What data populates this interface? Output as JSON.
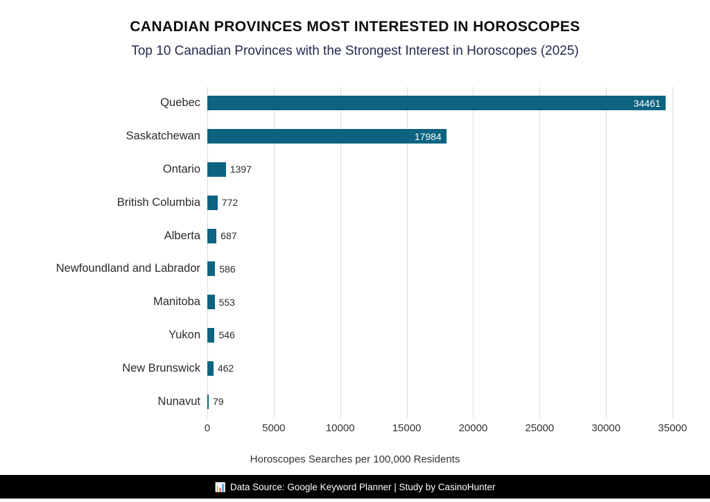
{
  "page": {
    "title": "CANADIAN PROVINCES MOST INTERESTED IN HOROSCOPES",
    "subtitle": "Top 10 Canadian Provinces with the Strongest Interest in Horoscopes (2025)"
  },
  "chart_data": {
    "type": "bar",
    "orientation": "horizontal",
    "title": "CANADIAN PROVINCES MOST INTERESTED IN HOROSCOPES",
    "subtitle": "Top 10 Canadian Provinces with the Strongest Interest in Horoscopes (2025)",
    "categories": [
      "Quebec",
      "Saskatchewan",
      "Ontario",
      "British Columbia",
      "Alberta",
      "Newfoundland and Labrador",
      "Manitoba",
      "Yukon",
      "New Brunswick",
      "Nunavut"
    ],
    "values": [
      34461,
      17984,
      1397,
      772,
      687,
      586,
      553,
      546,
      462,
      79
    ],
    "xlabel": "Horoscopes Searches per 100,000 Residents",
    "ylabel": "",
    "xlim": [
      0,
      35000
    ],
    "xticks": [
      0,
      5000,
      10000,
      15000,
      20000,
      25000,
      30000,
      35000
    ],
    "grid": true,
    "legend": "none",
    "bar_color": "#0d6380",
    "value_label_inside_color": "#ffffff",
    "value_label_outside_color": "#2b2b2b",
    "gridline_color": "#dcdcdc"
  },
  "footer": {
    "icon_char": "📊",
    "text": "Data Source: Google Keyword Planner | Study by CasinoHunter",
    "background": "#000000",
    "text_color": "#ffffff"
  }
}
